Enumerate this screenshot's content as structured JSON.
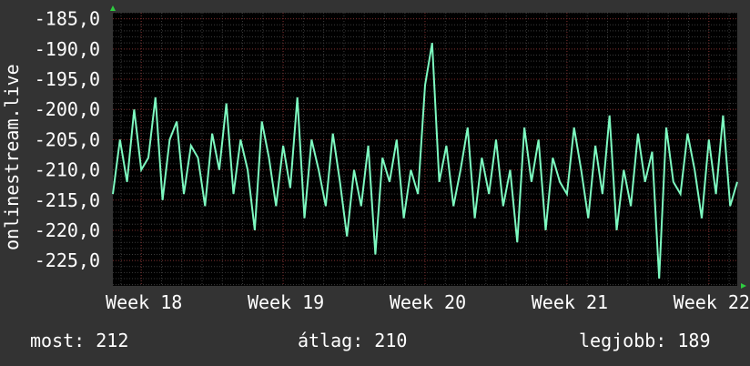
{
  "chart_data": {
    "type": "line",
    "ylabel": "onlinestream.live",
    "y_ticks": [
      "-185,0",
      "-190,0",
      "-195,0",
      "-200,0",
      "-205,0",
      "-210,0",
      "-215,0",
      "-220,0",
      "-225,0"
    ],
    "x_ticks": [
      "Week 18",
      "Week 19",
      "Week 20",
      "Week 21",
      "Week 22"
    ],
    "ylim": [
      -229.2,
      -184.0
    ],
    "xlim": [
      17.8,
      22.2
    ],
    "grid": true,
    "colors": {
      "background": "#333333",
      "plot_background": "#000000",
      "line": "#7df9c0",
      "grid_minor": "#3a3a3a",
      "grid_major": "#7a2a2a",
      "axis_arrow": "#2ecc40"
    },
    "series": [
      {
        "x": [
          17.8,
          17.85,
          17.9,
          17.95,
          18.0,
          18.05,
          18.1,
          18.15,
          18.2,
          18.25,
          18.3,
          18.35,
          18.4,
          18.45,
          18.5,
          18.55,
          18.6,
          18.65,
          18.7,
          18.75,
          18.8,
          18.85,
          18.9,
          18.95,
          19.0,
          19.05,
          19.1,
          19.15,
          19.2,
          19.25,
          19.3,
          19.35,
          19.4,
          19.45,
          19.5,
          19.55,
          19.6,
          19.65,
          19.7,
          19.75,
          19.8,
          19.85,
          19.9,
          19.95,
          20.0,
          20.05,
          20.1,
          20.15,
          20.2,
          20.25,
          20.3,
          20.35,
          20.4,
          20.45,
          20.5,
          20.55,
          20.6,
          20.65,
          20.7,
          20.75,
          20.8,
          20.85,
          20.9,
          20.95,
          21.0,
          21.05,
          21.1,
          21.15,
          21.2,
          21.25,
          21.3,
          21.35,
          21.4,
          21.45,
          21.5,
          21.55,
          21.6,
          21.65,
          21.7,
          21.75,
          21.8,
          21.85,
          21.9,
          21.95,
          22.0,
          22.05,
          22.1,
          22.15,
          22.2
        ],
        "y": [
          -214,
          -205,
          -212,
          -200,
          -210,
          -208,
          -198,
          -215,
          -205,
          -202,
          -214,
          -206,
          -208,
          -216,
          -204,
          -210,
          -199,
          -214,
          -205,
          -210,
          -220,
          -202,
          -208,
          -216,
          -206,
          -213,
          -198,
          -218,
          -205,
          -210,
          -216,
          -204,
          -212,
          -221,
          -210,
          -216,
          -206,
          -224,
          -208,
          -212,
          -205,
          -218,
          -210,
          -214,
          -196,
          -189,
          -212,
          -206,
          -216,
          -210,
          -203,
          -218,
          -208,
          -214,
          -205,
          -216,
          -210,
          -222,
          -203,
          -212,
          -205,
          -220,
          -208,
          -212,
          -214,
          -203,
          -210,
          -218,
          -206,
          -214,
          -201,
          -220,
          -210,
          -216,
          -204,
          -212,
          -207,
          -228,
          -203,
          -212,
          -214,
          -204,
          -210,
          -218,
          -205,
          -214,
          -201,
          -216,
          -212
        ]
      }
    ]
  },
  "stats": {
    "current_label": "most:",
    "current_value": "212",
    "average_label": "átlag:",
    "average_value": "210",
    "best_label": "legjobb:",
    "best_value": "189"
  }
}
